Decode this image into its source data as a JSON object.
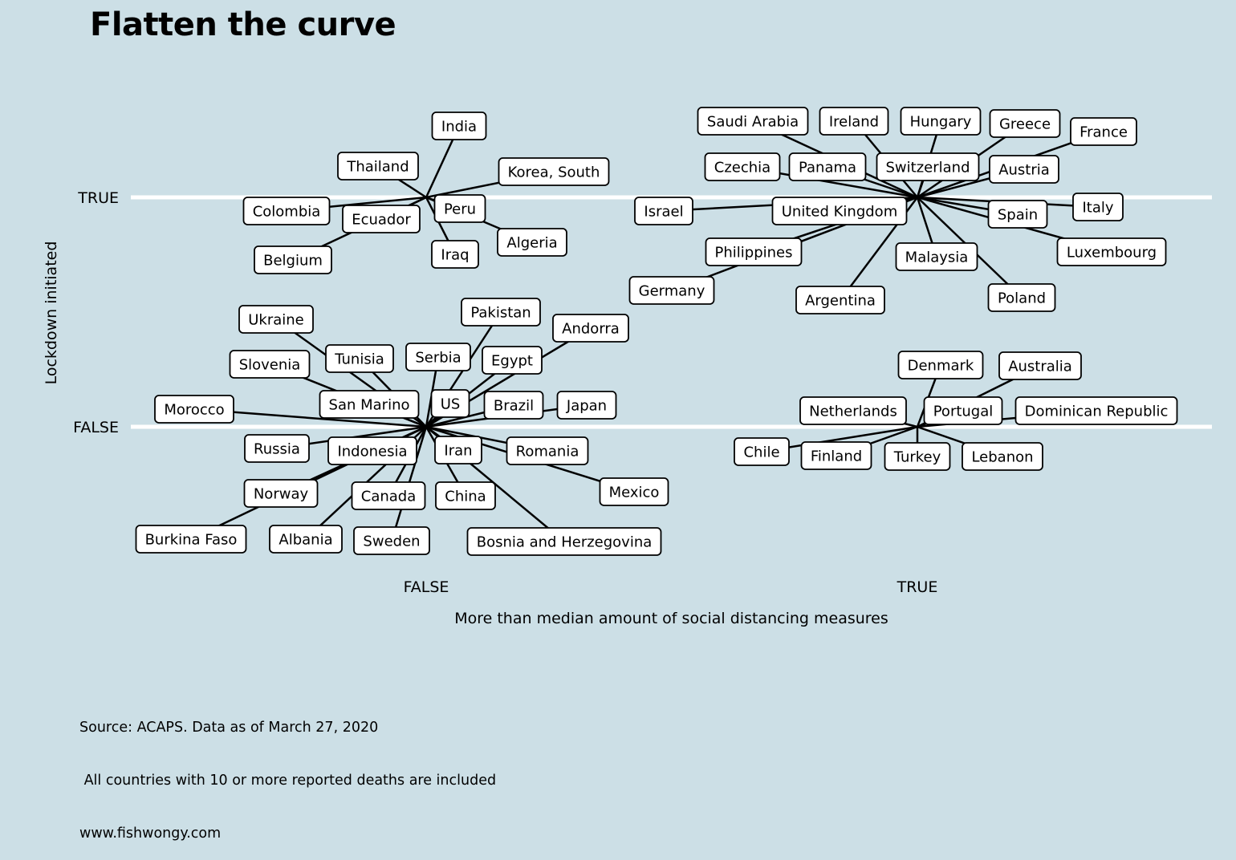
{
  "chart_data": {
    "type": "scatter",
    "title": "Flatten the curve",
    "xlabel": "More than median amount of social distancing measures",
    "ylabel": "Lockdown initiated",
    "x_categories": [
      "FALSE",
      "TRUE"
    ],
    "y_categories": [
      "FALSE",
      "TRUE"
    ],
    "grid": true,
    "caption": [
      "Source: ACAPS. Data as of March 27, 2020",
      " All countries with 10 or more reported deaths are included",
      "www.fishwongy.com"
    ],
    "groups": [
      {
        "x": "FALSE",
        "y": "TRUE",
        "countries": [
          "India",
          "Thailand",
          "Korea, South",
          "Colombia",
          "Ecuador",
          "Peru",
          "Algeria",
          "Belgium",
          "Iraq"
        ]
      },
      {
        "x": "TRUE",
        "y": "TRUE",
        "countries": [
          "Saudi Arabia",
          "Ireland",
          "Hungary",
          "Greece",
          "France",
          "Czechia",
          "Panama",
          "Switzerland",
          "Austria",
          "Israel",
          "United Kingdom",
          "Spain",
          "Italy",
          "Philippines",
          "Malaysia",
          "Luxembourg",
          "Germany",
          "Argentina",
          "Poland"
        ]
      },
      {
        "x": "FALSE",
        "y": "FALSE",
        "countries": [
          "Pakistan",
          "Ukraine",
          "Andorra",
          "Tunisia",
          "Serbia",
          "Egypt",
          "Slovenia",
          "San Marino",
          "US",
          "Brazil",
          "Japan",
          "Morocco",
          "Russia",
          "Indonesia",
          "Iran",
          "Romania",
          "Norway",
          "Canada",
          "China",
          "Mexico",
          "Burkina Faso",
          "Albania",
          "Sweden",
          "Bosnia and Herzegovina"
        ]
      },
      {
        "x": "TRUE",
        "y": "FALSE",
        "countries": [
          "Denmark",
          "Australia",
          "Netherlands",
          "Portugal",
          "Dominican Republic",
          "Chile",
          "Finland",
          "Turkey",
          "Lebanon"
        ]
      }
    ]
  }
}
